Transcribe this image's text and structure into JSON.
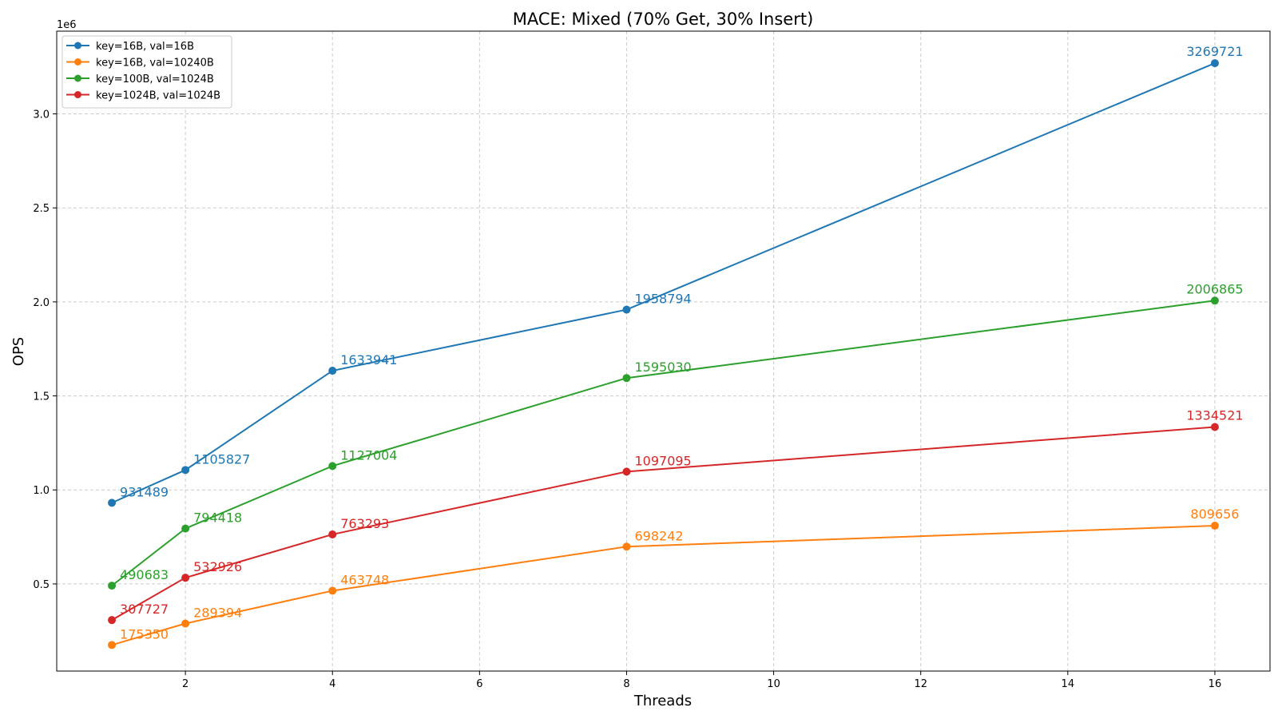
{
  "chart_data": {
    "type": "line",
    "title": "MACE: Mixed (70% Get, 30% Insert)",
    "xlabel": "Threads",
    "ylabel": "OPS",
    "y_multiplier_label": "1e6",
    "x": [
      1,
      2,
      4,
      8,
      16
    ],
    "xlim": [
      0.25,
      16.75
    ],
    "ylim": [
      0.0365,
      3.44
    ],
    "x_ticks": [
      2,
      4,
      6,
      8,
      10,
      12,
      14,
      16
    ],
    "y_ticks": [
      0.5,
      1.0,
      1.5,
      2.0,
      2.5,
      3.0
    ],
    "y_tick_labels": [
      "0.5",
      "1.0",
      "1.5",
      "2.0",
      "2.5",
      "3.0"
    ],
    "grid": true,
    "legend_position": "top-left",
    "series": [
      {
        "name": "key=16B, val=16B",
        "color": "#1f77b4",
        "values": [
          931489,
          1105827,
          1633941,
          1958794,
          3269721
        ]
      },
      {
        "name": "key=16B, val=10240B",
        "color": "#ff7f0e",
        "values": [
          175350,
          289394,
          463748,
          698242,
          809656
        ]
      },
      {
        "name": "key=100B, val=1024B",
        "color": "#2ca02c",
        "values": [
          490683,
          794418,
          1127004,
          1595030,
          2006865
        ]
      },
      {
        "name": "key=1024B, val=1024B",
        "color": "#d62728",
        "values": [
          307727,
          532926,
          763293,
          1097095,
          1334521
        ]
      }
    ]
  }
}
